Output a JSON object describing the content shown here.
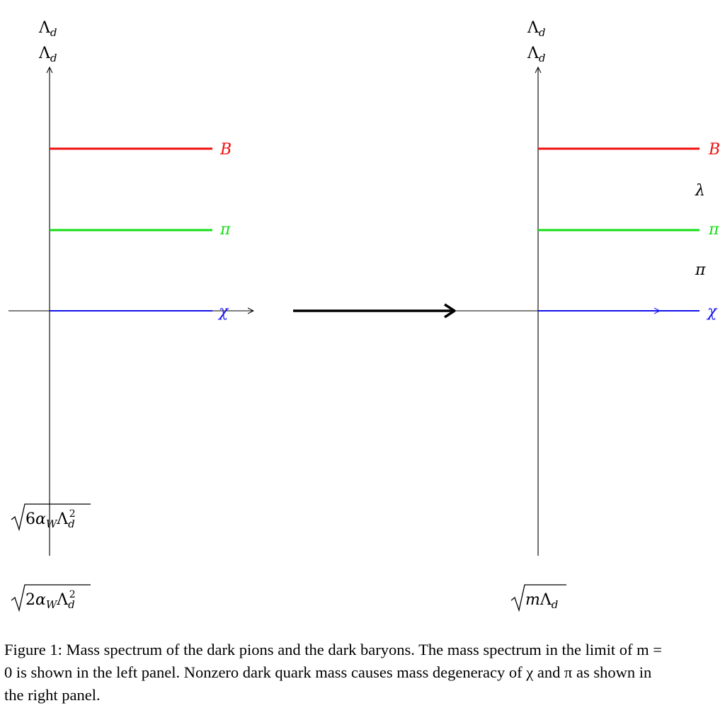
{
  "diagram": {
    "left_panel": {
      "axis_top_labels": [
        "Λ_d",
        "Λ_d"
      ],
      "levels": [
        {
          "name": "B",
          "color": "#ee1111"
        },
        {
          "name": "π",
          "color": "#11dd11"
        },
        {
          "name": "χ",
          "color": "#1111ee"
        }
      ],
      "bottom_labels": [
        "√6α_W Λ_d²",
        "√2α_W Λ_d²"
      ]
    },
    "right_panel": {
      "axis_top_labels": [
        "Λ_d",
        "Λ_d"
      ],
      "levels": [
        {
          "name": "B",
          "color": "#ee1111"
        },
        {
          "name": "π",
          "color": "#11dd11"
        },
        {
          "name": "χ",
          "color": "#1111ee"
        }
      ],
      "gap_labels": [
        "λ",
        "π"
      ],
      "bottom_label": "√mΛ_d"
    }
  },
  "caption": "Figure 1: Mass spectrum of the dark pions and the dark baryons. The mass spectrum in the limit of m = 0 is shown in the left panel. Nonzero dark quark mass causes mass degeneracy of χ and π as shown in the right panel."
}
